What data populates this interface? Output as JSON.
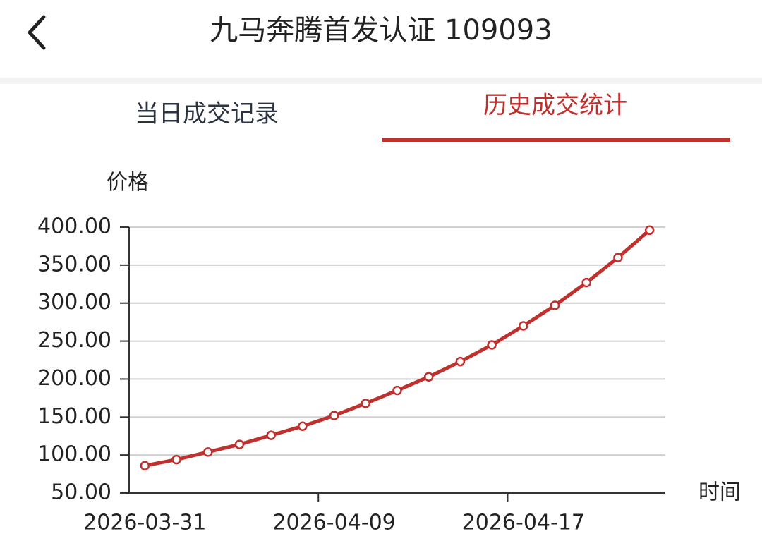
{
  "header": {
    "title": "九马奔腾首发认证 109093"
  },
  "tabs": [
    {
      "label": "当日成交记录",
      "active": false
    },
    {
      "label": "历史成交统计",
      "active": true
    }
  ],
  "chart_data": {
    "type": "line",
    "y_label": "价格",
    "x_label": "时间",
    "categories": [
      "2026-03-31",
      null,
      null,
      null,
      null,
      null,
      "2026-04-09",
      null,
      null,
      null,
      null,
      null,
      "2026-04-17",
      null,
      null,
      null,
      null
    ],
    "series": [
      {
        "name": "价格",
        "color": "#c0302c",
        "values": [
          86,
          94,
          104,
          114,
          126,
          138,
          152,
          168,
          185,
          203,
          223,
          245,
          270,
          297,
          327,
          360,
          396
        ]
      }
    ],
    "ylim": [
      50,
      400
    ],
    "yticks": [
      {
        "value": 50,
        "label": "50.00"
      },
      {
        "value": 100,
        "label": "100.00"
      },
      {
        "value": 150,
        "label": "150.00"
      },
      {
        "value": 200,
        "label": "200.00"
      },
      {
        "value": 250,
        "label": "250.00"
      },
      {
        "value": 300,
        "label": "300.00"
      },
      {
        "value": 350,
        "label": "350.00"
      },
      {
        "value": 400,
        "label": "400.00"
      }
    ],
    "grid": true
  }
}
